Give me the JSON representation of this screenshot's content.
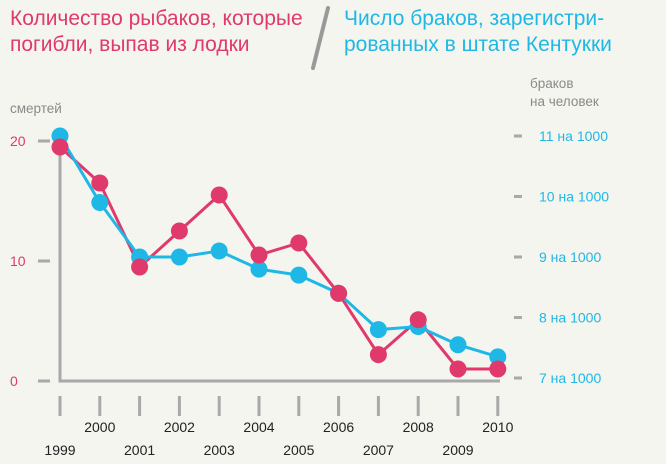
{
  "colors": {
    "left_series": "#e0396b",
    "right_series": "#1fb8e6",
    "axis": "#a9a9a9",
    "background": "#f4f5ef"
  },
  "chart_data": {
    "type": "line",
    "title_left": [
      "Количество рыбаков, которые",
      "погибли, выпав из лодки"
    ],
    "title_right": [
      "Число браков, зарегистри-",
      "рованных в штате Кентукки"
    ],
    "ylabel_left": "смертей",
    "ylabel_right": [
      "браков",
      "на человек"
    ],
    "y_left_ticks": [
      "0",
      "10",
      "20"
    ],
    "y_right_ticks": [
      "11 на 1000",
      "10 на 1000",
      "9 на 1000",
      "8 на 1000",
      "7 на 1000"
    ],
    "ylim_left": [
      0,
      20
    ],
    "ylim_right": [
      7,
      11
    ],
    "x": [
      "1999",
      "2000",
      "2001",
      "2002",
      "2003",
      "2004",
      "2005",
      "2006",
      "2007",
      "2008",
      "2009",
      "2010"
    ],
    "series": [
      {
        "axis": "left",
        "values": [
          19.5,
          16.5,
          9.5,
          12.5,
          15.5,
          10.5,
          11.5,
          7.3,
          2.2,
          5.1,
          1.0,
          1.0
        ]
      },
      {
        "axis": "right",
        "values": [
          11.0,
          9.9,
          9.0,
          9.0,
          9.1,
          8.8,
          8.7,
          8.4,
          7.8,
          7.85,
          7.55,
          7.35
        ]
      }
    ]
  }
}
